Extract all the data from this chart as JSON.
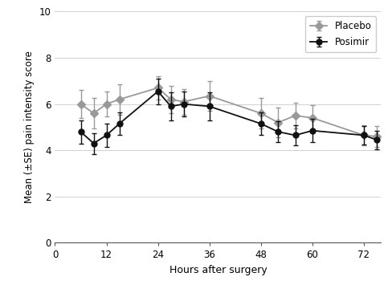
{
  "placebo_x": [
    6,
    9,
    12,
    15,
    24,
    27,
    30,
    36,
    48,
    52,
    56,
    60,
    72,
    75
  ],
  "placebo_y": [
    6.0,
    5.6,
    6.0,
    6.2,
    6.7,
    6.2,
    6.1,
    6.35,
    5.6,
    5.2,
    5.5,
    5.4,
    4.65,
    4.6
  ],
  "placebo_se": [
    0.6,
    0.65,
    0.55,
    0.65,
    0.5,
    0.6,
    0.55,
    0.65,
    0.65,
    0.65,
    0.55,
    0.55,
    0.45,
    0.45
  ],
  "posimir_x": [
    6,
    9,
    12,
    15,
    24,
    27,
    30,
    36,
    48,
    52,
    56,
    60,
    72,
    75
  ],
  "posimir_y": [
    4.8,
    4.3,
    4.65,
    5.15,
    6.55,
    5.9,
    6.0,
    5.9,
    5.15,
    4.8,
    4.65,
    4.85,
    4.65,
    4.45
  ],
  "posimir_se": [
    0.5,
    0.45,
    0.5,
    0.5,
    0.55,
    0.6,
    0.55,
    0.6,
    0.5,
    0.45,
    0.45,
    0.5,
    0.4,
    0.4
  ],
  "placebo_color": "#999999",
  "posimir_color": "#111111",
  "placebo_label": "Placebo",
  "posimir_label": "Posimir",
  "xlabel": "Hours after surgery",
  "ylabel": "Mean (±SE) pain intensity score",
  "ylim": [
    0,
    10
  ],
  "xlim": [
    0,
    76
  ],
  "xticks": [
    0,
    12,
    24,
    36,
    48,
    60,
    72
  ],
  "yticks": [
    0,
    2,
    4,
    6,
    8,
    10
  ],
  "grid_color": "#d0d0d0",
  "background_color": "#ffffff",
  "marker_size": 5,
  "line_width": 1.3,
  "capsize": 2.5,
  "elinewidth": 1.0
}
